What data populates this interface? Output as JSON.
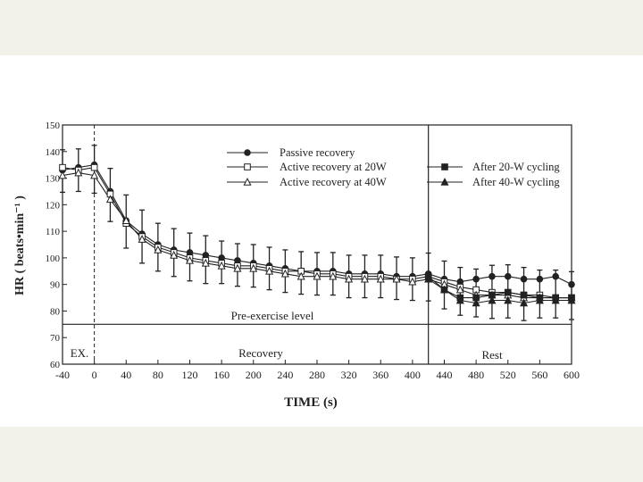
{
  "chart_data": {
    "type": "line",
    "xlabel": "TIME (s)",
    "ylabel": "HR ( beats•min⁻¹ )",
    "xlim": [
      -40,
      600
    ],
    "ylim": [
      60,
      150
    ],
    "x_ticks": [
      -40,
      0,
      40,
      80,
      120,
      160,
      200,
      240,
      280,
      320,
      360,
      400,
      440,
      480,
      520,
      560,
      600
    ],
    "y_ticks": [
      60,
      70,
      80,
      90,
      100,
      110,
      120,
      130,
      140,
      150
    ],
    "x": [
      -40,
      -20,
      0,
      20,
      40,
      60,
      80,
      100,
      120,
      140,
      160,
      180,
      200,
      220,
      240,
      260,
      280,
      300,
      320,
      340,
      360,
      380,
      400,
      420,
      440,
      460,
      480,
      500,
      520,
      540,
      560,
      580,
      600
    ],
    "series": [
      {
        "name": "Passive recovery",
        "marker": "filled-circle",
        "values": [
          133,
          134,
          135,
          125,
          114,
          109,
          105,
          103,
          102,
          101,
          100,
          99,
          98,
          97,
          96,
          95,
          95,
          95,
          94,
          94,
          94,
          93,
          93,
          94,
          92,
          91,
          92,
          93,
          93,
          92,
          92,
          93,
          90
        ]
      },
      {
        "name": "Active recovery at 20W",
        "marker": "open-square",
        "values": [
          134,
          133,
          134,
          124,
          113,
          108,
          104,
          102,
          100,
          99,
          98,
          97,
          97,
          96,
          95,
          95,
          94,
          94,
          93,
          93,
          93,
          92,
          92,
          93,
          91,
          89,
          88,
          87,
          87,
          86,
          86,
          85,
          85
        ]
      },
      {
        "name": "Active recovery at 40W",
        "marker": "open-triangle",
        "values": [
          131,
          132,
          131,
          122,
          114,
          107,
          103,
          101,
          99,
          98,
          97,
          96,
          96,
          95,
          94,
          93,
          93,
          93,
          92,
          92,
          92,
          92,
          91,
          92,
          90,
          88,
          86,
          86,
          86,
          85,
          85,
          85,
          85
        ]
      },
      {
        "name": "After 20-W cycling",
        "marker": "filled-square",
        "values": [
          null,
          null,
          null,
          null,
          null,
          null,
          null,
          null,
          null,
          null,
          null,
          null,
          null,
          null,
          null,
          null,
          null,
          null,
          null,
          null,
          null,
          null,
          null,
          93,
          88,
          85,
          85,
          86,
          87,
          86,
          85,
          85,
          85
        ]
      },
      {
        "name": "After 40-W cycling",
        "marker": "filled-triangle",
        "values": [
          null,
          null,
          null,
          null,
          null,
          null,
          null,
          null,
          null,
          null,
          null,
          null,
          null,
          null,
          null,
          null,
          null,
          null,
          null,
          null,
          null,
          null,
          null,
          92,
          88,
          84,
          83,
          84,
          84,
          83,
          84,
          84,
          84
        ]
      }
    ],
    "error": [
      8,
      8,
      9,
      10,
      10,
      10,
      9,
      9,
      9,
      9,
      8,
      8,
      8,
      8,
      8,
      8,
      8,
      8,
      8,
      8,
      8,
      8,
      8,
      9,
      9,
      9,
      9,
      10,
      10,
      10,
      9,
      9,
      9
    ],
    "annotations": {
      "pre_exercise_label": "Pre-exercise level",
      "pre_exercise_value": 75,
      "phase_ex": "EX.",
      "phase_recovery": "Recovery",
      "phase_rest": "Rest",
      "phase_boundaries": [
        0,
        420
      ]
    },
    "legend_placement": "top"
  }
}
